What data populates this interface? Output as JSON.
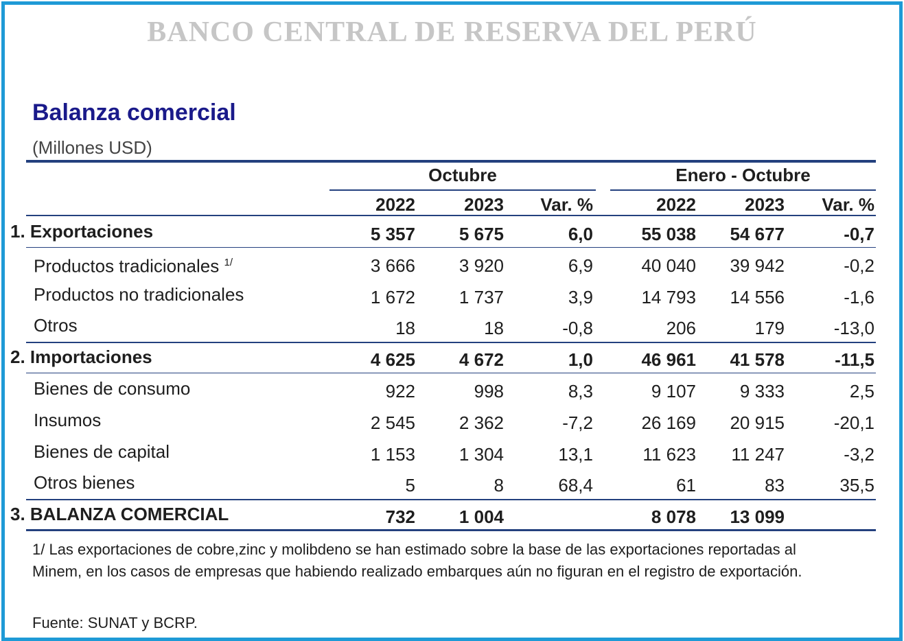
{
  "header": {
    "title": "BANCO CENTRAL DE RESERVA DEL PERÚ",
    "subtitle": "Balanza comercial",
    "units": "(Millones USD)"
  },
  "table": {
    "groups": [
      "Octubre",
      "Enero - Octubre"
    ],
    "columns": [
      "2022",
      "2023",
      "Var. %",
      "2022",
      "2023",
      "Var. %"
    ],
    "rows": [
      {
        "label": "1. Exportaciones",
        "bold": true,
        "values": [
          "5 357",
          "5 675",
          "6,0",
          "55 038",
          "54 677",
          "-0,7"
        ]
      },
      {
        "label": "Productos tradicionales",
        "note_ref": "1/",
        "bold": false,
        "values": [
          "3 666",
          "3 920",
          "6,9",
          "40 040",
          "39 942",
          "-0,2"
        ]
      },
      {
        "label": "Productos no tradicionales",
        "bold": false,
        "values": [
          "1 672",
          "1 737",
          "3,9",
          "14 793",
          "14 556",
          "-1,6"
        ]
      },
      {
        "label": "Otros",
        "bold": false,
        "values": [
          "18",
          "18",
          "-0,8",
          "206",
          "179",
          "-13,0"
        ]
      },
      {
        "label": "2. Importaciones",
        "bold": true,
        "values": [
          "4 625",
          "4 672",
          "1,0",
          "46 961",
          "41 578",
          "-11,5"
        ]
      },
      {
        "label": "Bienes de consumo",
        "bold": false,
        "values": [
          "922",
          "998",
          "8,3",
          "9 107",
          "9 333",
          "2,5"
        ]
      },
      {
        "label": "Insumos",
        "bold": false,
        "values": [
          "2 545",
          "2 362",
          "-7,2",
          "26 169",
          "20 915",
          "-20,1"
        ]
      },
      {
        "label": "Bienes de capital",
        "bold": false,
        "values": [
          "1 153",
          "1 304",
          "13,1",
          "11 623",
          "11 247",
          "-3,2"
        ]
      },
      {
        "label": "Otros bienes",
        "bold": false,
        "values": [
          "5",
          "8",
          "68,4",
          "61",
          "83",
          "35,5"
        ]
      },
      {
        "label": "3. BALANZA COMERCIAL",
        "bold": true,
        "values": [
          "732",
          "1 004",
          null,
          "8 078",
          "13 099",
          null
        ]
      }
    ]
  },
  "footnote": "1/ Las exportaciones de cobre,zinc y molibdeno se han estimado sobre la base de las exportaciones reportadas al Minem, en los casos de empresas que habiendo realizado embarques aún no figuran en el registro de exportación.",
  "source": "Fuente: SUNAT y BCRP."
}
